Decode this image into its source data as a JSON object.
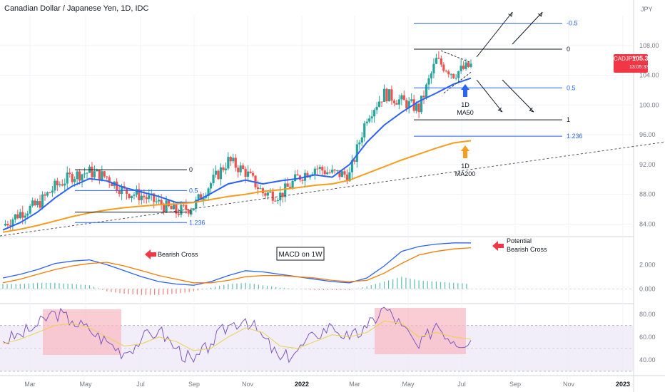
{
  "header": {
    "title": "Canadian Dollar / Japanese Yen, 1D, IDC"
  },
  "price_badge": {
    "symbol": "CADJPY",
    "price": "105.300",
    "countdown": "13:05:33",
    "color": "#f23645"
  },
  "colors": {
    "up": "#26a69a",
    "down": "#ef5350",
    "ma50": "#2962ff",
    "ma200": "#f59d1c",
    "macd": "#2962ff",
    "signal": "#f57c00",
    "rsi": "#7e57c2",
    "rsi_ma": "#e8d24f",
    "fib": "#2962ff",
    "highlight": "#f8bbc4",
    "arrow_red": "#f23645",
    "rsi_band": "#ede7f6"
  },
  "chart_data": [
    {
      "type": "line",
      "panel": "price",
      "unit": "JPY",
      "y_ticks": [
        84.0,
        88.0,
        92.0,
        96.0,
        100.0,
        104.0,
        108.0
      ],
      "ylim": [
        82.5,
        112
      ],
      "x_ticks": [
        "Mar",
        "May",
        "Jul",
        "Sep",
        "Nov",
        "2022",
        "Mar",
        "May",
        "Jul",
        "Sep",
        "Nov",
        "2023"
      ],
      "series": [
        {
          "name": "1D MA50",
          "role": "ma50",
          "values": [
            83.2,
            84.2,
            85.6,
            87.5,
            89.1,
            90.1,
            89.8,
            88.9,
            88.3,
            87.7,
            86.9,
            86.9,
            88.1,
            89.4,
            89.9,
            89.4,
            89.8,
            90.1,
            90.6,
            90.3,
            92.0,
            95.0,
            97.3,
            99.0,
            100.5,
            101.6,
            102.8,
            103.6
          ]
        },
        {
          "name": "1D MA200",
          "role": "ma200",
          "values": [
            82.9,
            83.3,
            83.8,
            84.4,
            85.0,
            85.5,
            85.9,
            86.2,
            86.4,
            86.6,
            86.7,
            86.9,
            87.3,
            87.7,
            88.0,
            88.4,
            88.6,
            88.9,
            89.2,
            89.4,
            89.9,
            90.8,
            91.7,
            92.6,
            93.4,
            94.2,
            94.9,
            95.2
          ]
        },
        {
          "name": "CADJPY",
          "role": "price",
          "values": [
            83.8,
            85.5,
            86.6,
            89.0,
            90.5,
            91.0,
            90.3,
            88.4,
            87.8,
            86.8,
            85.6,
            86.4,
            89.5,
            92.5,
            91.0,
            88.2,
            87.9,
            90.2,
            91.6,
            90.8,
            90.6,
            98.5,
            101.5,
            100.5,
            99.5,
            106.0,
            104.2,
            105.3
          ]
        }
      ]
    },
    {
      "type": "line",
      "panel": "macd",
      "title": "MACD on 1W",
      "y_ticks": [
        0.0,
        2.0
      ],
      "ylim": [
        -1.1,
        4.2
      ],
      "series": [
        {
          "name": "MACD",
          "role": "macd",
          "values": [
            0.9,
            1.2,
            1.6,
            2.1,
            2.3,
            2.4,
            2.0,
            1.5,
            1.0,
            0.6,
            0.4,
            0.3,
            0.6,
            1.1,
            1.5,
            1.4,
            1.2,
            1.0,
            0.8,
            0.6,
            0.5,
            0.9,
            1.9,
            3.1,
            3.5,
            3.7,
            3.8,
            3.8
          ]
        },
        {
          "name": "Signal",
          "role": "signal",
          "values": [
            0.5,
            0.8,
            1.2,
            1.6,
            1.9,
            2.1,
            2.2,
            1.9,
            1.5,
            1.1,
            0.8,
            0.5,
            0.5,
            0.7,
            1.0,
            1.1,
            1.1,
            1.0,
            0.9,
            0.7,
            0.6,
            0.7,
            1.3,
            2.1,
            2.8,
            3.1,
            3.3,
            3.4
          ]
        },
        {
          "name": "Histogram",
          "role": "hist",
          "values": [
            0.4,
            0.4,
            0.5,
            0.5,
            0.4,
            0.3,
            -0.2,
            -0.4,
            -0.5,
            -0.5,
            -0.4,
            -0.2,
            0.1,
            0.4,
            0.5,
            0.3,
            0.1,
            0.0,
            -0.1,
            -0.1,
            -0.1,
            0.2,
            0.6,
            1.0,
            0.7,
            0.6,
            0.5,
            0.4
          ]
        }
      ]
    },
    {
      "type": "line",
      "panel": "rsi",
      "y_ticks": [
        40.0,
        60.0,
        80.0
      ],
      "ylim": [
        28,
        88
      ],
      "series": [
        {
          "name": "RSI",
          "role": "rsi",
          "values": [
            56,
            62,
            70,
            82,
            74,
            66,
            56,
            46,
            58,
            66,
            50,
            38,
            54,
            70,
            76,
            60,
            40,
            48,
            62,
            70,
            58,
            68,
            86,
            70,
            50,
            72,
            56,
            57
          ]
        },
        {
          "name": "RSI MA",
          "role": "rsi_ma",
          "values": [
            54,
            58,
            64,
            70,
            72,
            68,
            60,
            52,
            54,
            60,
            56,
            48,
            50,
            60,
            68,
            64,
            52,
            50,
            56,
            62,
            60,
            64,
            74,
            72,
            60,
            64,
            60,
            58
          ]
        }
      ]
    }
  ],
  "annotations": {
    "fib_2021": [
      {
        "label": "0",
        "value": 91.3
      },
      {
        "label": "0.5",
        "value": 88.5
      },
      {
        "label": "1",
        "value": 85.6
      },
      {
        "label": "1.236",
        "value": 84.2
      }
    ],
    "fib_2022": [
      {
        "label": "-0.5",
        "value": 111.0
      },
      {
        "label": "0",
        "value": 107.5
      },
      {
        "label": "0.5",
        "value": 102.3
      },
      {
        "label": "1",
        "value": 98.0
      },
      {
        "label": "1.236",
        "value": 95.8
      }
    ],
    "ma50_label": [
      "1D",
      "MA50"
    ],
    "ma200_label": [
      "1D",
      "MA200"
    ],
    "macd_box": "MACD on 1W",
    "bearish_cross": "Bearish Cross",
    "potential_bearish_cross": [
      "Potential",
      "Bearish Cross"
    ],
    "axis_unit": "JPY"
  }
}
